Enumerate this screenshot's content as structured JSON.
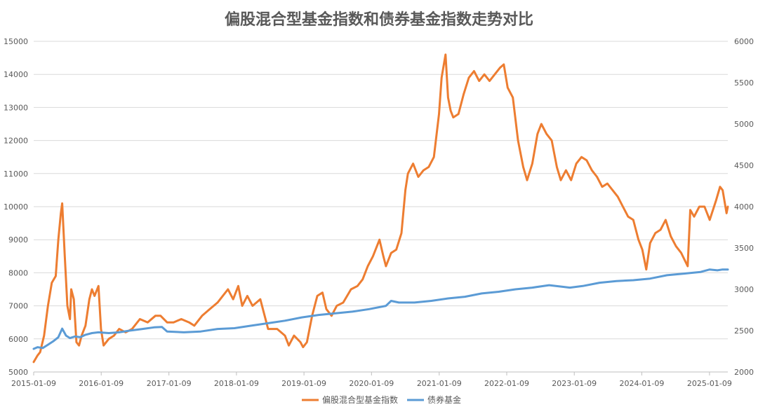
{
  "chart_data": {
    "type": "line",
    "title": "偏股混合型基金指数和债券基金指数走势对比",
    "legend_position": "bottom",
    "grid": true,
    "x_tick_labels": [
      "2015-01-09",
      "2016-01-09",
      "2017-01-09",
      "2018-01-09",
      "2019-01-09",
      "2020-01-09",
      "2021-01-09",
      "2022-01-09",
      "2023-01-09",
      "2024-01-09",
      "2025-01-09"
    ],
    "x_range": [
      "2015-01-09",
      "2025-04-18"
    ],
    "y_left": {
      "ylim": [
        5000,
        15000
      ],
      "ticks": [
        5000,
        6000,
        7000,
        8000,
        9000,
        10000,
        11000,
        12000,
        13000,
        14000,
        15000
      ]
    },
    "y_right": {
      "ylim": [
        2000,
        6000
      ],
      "ticks": [
        2000,
        2500,
        3000,
        3500,
        4000,
        4500,
        5000,
        5500,
        6000
      ]
    },
    "series": [
      {
        "name": "偏股混合型基金指数",
        "axis": "left",
        "color": "#ED7D31",
        "points": [
          [
            "2015-01-09",
            5300
          ],
          [
            "2015-01-30",
            5500
          ],
          [
            "2015-02-13",
            5600
          ],
          [
            "2015-03-06",
            6100
          ],
          [
            "2015-03-27",
            7000
          ],
          [
            "2015-04-17",
            7700
          ],
          [
            "2015-05-08",
            7900
          ],
          [
            "2015-05-22",
            9000
          ],
          [
            "2015-06-05",
            9800
          ],
          [
            "2015-06-12",
            10100
          ],
          [
            "2015-06-26",
            8500
          ],
          [
            "2015-07-10",
            7000
          ],
          [
            "2015-07-24",
            6600
          ],
          [
            "2015-07-31",
            7500
          ],
          [
            "2015-08-14",
            7200
          ],
          [
            "2015-08-28",
            5900
          ],
          [
            "2015-09-11",
            5800
          ],
          [
            "2015-09-25",
            6100
          ],
          [
            "2015-10-16",
            6400
          ],
          [
            "2015-11-06",
            7200
          ],
          [
            "2015-11-20",
            7500
          ],
          [
            "2015-12-04",
            7300
          ],
          [
            "2015-12-25",
            7600
          ],
          [
            "2016-01-08",
            6300
          ],
          [
            "2016-01-22",
            5800
          ],
          [
            "2016-02-19",
            6000
          ],
          [
            "2016-03-18",
            6100
          ],
          [
            "2016-04-15",
            6300
          ],
          [
            "2016-05-20",
            6200
          ],
          [
            "2016-06-24",
            6300
          ],
          [
            "2016-08-05",
            6600
          ],
          [
            "2016-09-16",
            6500
          ],
          [
            "2016-10-28",
            6700
          ],
          [
            "2016-11-25",
            6700
          ],
          [
            "2016-12-30",
            6500
          ],
          [
            "2017-02-03",
            6500
          ],
          [
            "2017-03-17",
            6600
          ],
          [
            "2017-04-28",
            6500
          ],
          [
            "2017-05-26",
            6400
          ],
          [
            "2017-07-07",
            6700
          ],
          [
            "2017-08-18",
            6900
          ],
          [
            "2017-09-29",
            7100
          ],
          [
            "2017-10-27",
            7300
          ],
          [
            "2017-11-24",
            7500
          ],
          [
            "2017-12-22",
            7200
          ],
          [
            "2018-01-19",
            7600
          ],
          [
            "2018-02-09",
            7000
          ],
          [
            "2018-03-09",
            7300
          ],
          [
            "2018-04-06",
            7000
          ],
          [
            "2018-05-18",
            7200
          ],
          [
            "2018-06-29",
            6300
          ],
          [
            "2018-08-17",
            6300
          ],
          [
            "2018-09-28",
            6100
          ],
          [
            "2018-10-19",
            5800
          ],
          [
            "2018-11-16",
            6100
          ],
          [
            "2018-12-21",
            5900
          ],
          [
            "2019-01-04",
            5750
          ],
          [
            "2019-01-25",
            5900
          ],
          [
            "2019-02-22",
            6700
          ],
          [
            "2019-03-22",
            7300
          ],
          [
            "2019-04-19",
            7400
          ],
          [
            "2019-05-10",
            6900
          ],
          [
            "2019-06-07",
            6700
          ],
          [
            "2019-07-05",
            7000
          ],
          [
            "2019-08-09",
            7100
          ],
          [
            "2019-09-20",
            7500
          ],
          [
            "2019-10-25",
            7600
          ],
          [
            "2019-11-22",
            7800
          ],
          [
            "2019-12-20",
            8200
          ],
          [
            "2020-01-17",
            8500
          ],
          [
            "2020-02-21",
            9000
          ],
          [
            "2020-03-13",
            8500
          ],
          [
            "2020-03-27",
            8200
          ],
          [
            "2020-04-24",
            8600
          ],
          [
            "2020-05-22",
            8700
          ],
          [
            "2020-06-19",
            9200
          ],
          [
            "2020-07-10",
            10500
          ],
          [
            "2020-07-24",
            11000
          ],
          [
            "2020-08-21",
            11300
          ],
          [
            "2020-09-18",
            10900
          ],
          [
            "2020-10-16",
            11100
          ],
          [
            "2020-11-13",
            11200
          ],
          [
            "2020-12-11",
            11500
          ],
          [
            "2021-01-08",
            12800
          ],
          [
            "2021-01-22",
            13900
          ],
          [
            "2021-02-12",
            14600
          ],
          [
            "2021-02-26",
            13300
          ],
          [
            "2021-03-12",
            12900
          ],
          [
            "2021-03-26",
            12700
          ],
          [
            "2021-04-23",
            12800
          ],
          [
            "2021-05-21",
            13400
          ],
          [
            "2021-06-18",
            13900
          ],
          [
            "2021-07-16",
            14100
          ],
          [
            "2021-08-13",
            13800
          ],
          [
            "2021-09-10",
            14000
          ],
          [
            "2021-10-08",
            13800
          ],
          [
            "2021-11-05",
            14000
          ],
          [
            "2021-12-03",
            14200
          ],
          [
            "2021-12-24",
            14300
          ],
          [
            "2022-01-14",
            13600
          ],
          [
            "2022-02-11",
            13300
          ],
          [
            "2022-03-11",
            12000
          ],
          [
            "2022-04-08",
            11200
          ],
          [
            "2022-04-29",
            10800
          ],
          [
            "2022-05-27",
            11300
          ],
          [
            "2022-06-24",
            12200
          ],
          [
            "2022-07-15",
            12500
          ],
          [
            "2022-08-12",
            12200
          ],
          [
            "2022-09-09",
            12000
          ],
          [
            "2022-10-07",
            11200
          ],
          [
            "2022-10-28",
            10800
          ],
          [
            "2022-11-25",
            11100
          ],
          [
            "2022-12-23",
            10800
          ],
          [
            "2023-01-20",
            11300
          ],
          [
            "2023-02-17",
            11500
          ],
          [
            "2023-03-17",
            11400
          ],
          [
            "2023-04-14",
            11100
          ],
          [
            "2023-05-12",
            10900
          ],
          [
            "2023-06-09",
            10600
          ],
          [
            "2023-07-07",
            10700
          ],
          [
            "2023-08-04",
            10500
          ],
          [
            "2023-09-01",
            10300
          ],
          [
            "2023-09-29",
            10000
          ],
          [
            "2023-10-27",
            9700
          ],
          [
            "2023-11-24",
            9600
          ],
          [
            "2023-12-22",
            9000
          ],
          [
            "2024-01-12",
            8700
          ],
          [
            "2024-02-02",
            8100
          ],
          [
            "2024-02-23",
            8900
          ],
          [
            "2024-03-22",
            9200
          ],
          [
            "2024-04-19",
            9300
          ],
          [
            "2024-05-17",
            9600
          ],
          [
            "2024-06-14",
            9100
          ],
          [
            "2024-07-12",
            8800
          ],
          [
            "2024-08-09",
            8600
          ],
          [
            "2024-09-13",
            8200
          ],
          [
            "2024-09-27",
            9900
          ],
          [
            "2024-10-18",
            9700
          ],
          [
            "2024-11-15",
            10000
          ],
          [
            "2024-12-13",
            10000
          ],
          [
            "2025-01-10",
            9600
          ],
          [
            "2025-02-14",
            10200
          ],
          [
            "2025-03-07",
            10600
          ],
          [
            "2025-03-21",
            10500
          ],
          [
            "2025-04-11",
            9800
          ],
          [
            "2025-04-18",
            10000
          ]
        ]
      },
      {
        "name": "债券基金",
        "axis": "right",
        "color": "#5B9BD5",
        "points": [
          [
            "2015-01-09",
            2280
          ],
          [
            "2015-01-30",
            2300
          ],
          [
            "2015-02-27",
            2290
          ],
          [
            "2015-03-27",
            2330
          ],
          [
            "2015-04-24",
            2370
          ],
          [
            "2015-05-22",
            2420
          ],
          [
            "2015-06-12",
            2525
          ],
          [
            "2015-07-03",
            2440
          ],
          [
            "2015-07-24",
            2410
          ],
          [
            "2015-08-21",
            2430
          ],
          [
            "2015-09-18",
            2420
          ],
          [
            "2015-10-16",
            2450
          ],
          [
            "2015-11-20",
            2470
          ],
          [
            "2015-12-25",
            2480
          ],
          [
            "2016-02-19",
            2470
          ],
          [
            "2016-04-15",
            2480
          ],
          [
            "2016-06-10",
            2500
          ],
          [
            "2016-08-19",
            2520
          ],
          [
            "2016-10-21",
            2540
          ],
          [
            "2016-12-02",
            2545
          ],
          [
            "2016-12-30",
            2490
          ],
          [
            "2017-03-31",
            2480
          ],
          [
            "2017-06-30",
            2490
          ],
          [
            "2017-09-29",
            2520
          ],
          [
            "2017-12-29",
            2530
          ],
          [
            "2018-03-30",
            2560
          ],
          [
            "2018-06-29",
            2590
          ],
          [
            "2018-09-28",
            2620
          ],
          [
            "2018-12-28",
            2660
          ],
          [
            "2019-03-29",
            2690
          ],
          [
            "2019-06-28",
            2710
          ],
          [
            "2019-09-27",
            2730
          ],
          [
            "2019-12-27",
            2760
          ],
          [
            "2020-03-27",
            2800
          ],
          [
            "2020-04-24",
            2860
          ],
          [
            "2020-06-05",
            2840
          ],
          [
            "2020-08-28",
            2840
          ],
          [
            "2020-11-27",
            2860
          ],
          [
            "2021-02-26",
            2890
          ],
          [
            "2021-05-28",
            2910
          ],
          [
            "2021-08-27",
            2950
          ],
          [
            "2021-11-26",
            2970
          ],
          [
            "2022-02-25",
            3000
          ],
          [
            "2022-05-27",
            3020
          ],
          [
            "2022-08-26",
            3050
          ],
          [
            "2022-11-11",
            3030
          ],
          [
            "2022-12-16",
            3020
          ],
          [
            "2023-02-24",
            3040
          ],
          [
            "2023-05-26",
            3080
          ],
          [
            "2023-08-25",
            3100
          ],
          [
            "2023-11-24",
            3110
          ],
          [
            "2024-02-23",
            3130
          ],
          [
            "2024-05-24",
            3170
          ],
          [
            "2024-08-23",
            3190
          ],
          [
            "2024-11-22",
            3210
          ],
          [
            "2025-01-10",
            3240
          ],
          [
            "2025-02-21",
            3230
          ],
          [
            "2025-03-21",
            3240
          ],
          [
            "2025-04-18",
            3240
          ]
        ]
      }
    ]
  }
}
